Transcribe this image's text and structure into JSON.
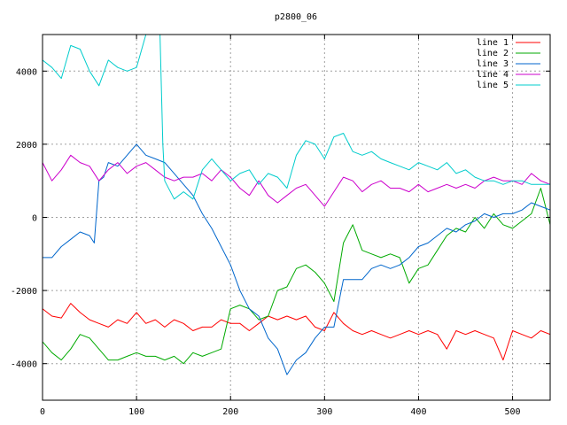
{
  "chart_data": {
    "type": "line",
    "title": "p2800_06",
    "xlabel": "",
    "ylabel": "",
    "xlim": [
      0,
      540
    ],
    "ylim": [
      -5000,
      5000
    ],
    "xticks": [
      0,
      100,
      200,
      300,
      400,
      500
    ],
    "yticks": [
      -4000,
      -2000,
      0,
      2000,
      4000
    ],
    "grid": true,
    "legend_position": "top-right",
    "series": [
      {
        "name": "line 1",
        "color": "#ff0000",
        "x": [
          0,
          10,
          20,
          30,
          40,
          50,
          60,
          70,
          80,
          90,
          100,
          110,
          120,
          130,
          140,
          150,
          160,
          170,
          180,
          190,
          200,
          210,
          220,
          230,
          240,
          250,
          260,
          270,
          280,
          290,
          300,
          310,
          320,
          330,
          340,
          350,
          360,
          370,
          380,
          390,
          400,
          410,
          420,
          430,
          440,
          450,
          460,
          470,
          480,
          490,
          500,
          510,
          520,
          530,
          540
        ],
        "y": [
          -2500,
          -2700,
          -2750,
          -2350,
          -2600,
          -2800,
          -2900,
          -3000,
          -2800,
          -2900,
          -2600,
          -2900,
          -2800,
          -3000,
          -2800,
          -2900,
          -3100,
          -3000,
          -3000,
          -2800,
          -2900,
          -2900,
          -3100,
          -2900,
          -2700,
          -2800,
          -2700,
          -2800,
          -2700,
          -3000,
          -3100,
          -2600,
          -2900,
          -3100,
          -3200,
          -3100,
          -3200,
          -3300,
          -3200,
          -3100,
          -3200,
          -3100,
          -3200,
          -3600,
          -3100,
          -3200,
          -3100,
          -3200,
          -3300,
          -3900,
          -3100,
          -3200,
          -3300,
          -3100,
          -3200
        ]
      },
      {
        "name": "line 2",
        "color": "#00aa00",
        "x": [
          0,
          10,
          20,
          30,
          40,
          50,
          60,
          70,
          80,
          90,
          100,
          110,
          120,
          130,
          140,
          150,
          160,
          170,
          180,
          190,
          200,
          210,
          220,
          230,
          240,
          250,
          260,
          270,
          280,
          290,
          300,
          310,
          320,
          330,
          340,
          350,
          360,
          370,
          380,
          390,
          400,
          410,
          420,
          430,
          440,
          450,
          460,
          470,
          480,
          490,
          500,
          510,
          520,
          530,
          540
        ],
        "y": [
          -3400,
          -3700,
          -3900,
          -3600,
          -3200,
          -3300,
          -3600,
          -3900,
          -3900,
          -3800,
          -3700,
          -3800,
          -3800,
          -3900,
          -3800,
          -4000,
          -3700,
          -3800,
          -3700,
          -3600,
          -2500,
          -2400,
          -2500,
          -2800,
          -2700,
          -2000,
          -1900,
          -1400,
          -1300,
          -1500,
          -1800,
          -2300,
          -700,
          -200,
          -900,
          -1000,
          -1100,
          -1000,
          -1100,
          -1800,
          -1400,
          -1300,
          -900,
          -500,
          -300,
          -400,
          0,
          -300,
          100,
          -200,
          -300,
          -100,
          100,
          800,
          -200
        ]
      },
      {
        "name": "line 3",
        "color": "#0066cc",
        "x": [
          0,
          10,
          20,
          30,
          40,
          50,
          55,
          60,
          65,
          70,
          80,
          90,
          100,
          110,
          120,
          130,
          140,
          150,
          160,
          170,
          180,
          190,
          200,
          210,
          220,
          230,
          240,
          250,
          260,
          270,
          280,
          290,
          300,
          310,
          320,
          330,
          340,
          350,
          360,
          370,
          380,
          390,
          400,
          410,
          420,
          430,
          440,
          450,
          460,
          470,
          480,
          490,
          500,
          510,
          520,
          530,
          540
        ],
        "y": [
          -1100,
          -1100,
          -800,
          -600,
          -400,
          -500,
          -700,
          1000,
          1100,
          1500,
          1400,
          1700,
          2000,
          1700,
          1600,
          1500,
          1200,
          900,
          600,
          100,
          -300,
          -800,
          -1300,
          -2000,
          -2500,
          -2700,
          -3300,
          -3600,
          -4300,
          -3900,
          -3700,
          -3300,
          -3000,
          -3000,
          -1700,
          -1700,
          -1700,
          -1400,
          -1300,
          -1400,
          -1300,
          -1100,
          -800,
          -700,
          -500,
          -300,
          -400,
          -200,
          -100,
          100,
          0,
          100,
          100,
          200,
          400,
          300,
          200
        ]
      },
      {
        "name": "line 4",
        "color": "#cc00cc",
        "x": [
          0,
          10,
          20,
          30,
          40,
          50,
          60,
          70,
          80,
          90,
          100,
          110,
          120,
          130,
          140,
          150,
          160,
          170,
          180,
          190,
          200,
          210,
          220,
          230,
          240,
          250,
          260,
          270,
          280,
          290,
          300,
          310,
          320,
          330,
          340,
          350,
          360,
          370,
          380,
          390,
          400,
          410,
          420,
          430,
          440,
          450,
          460,
          470,
          480,
          490,
          500,
          510,
          520,
          530,
          540
        ],
        "y": [
          1500,
          1000,
          1300,
          1700,
          1500,
          1400,
          1000,
          1300,
          1500,
          1200,
          1400,
          1500,
          1300,
          1100,
          1000,
          1100,
          1100,
          1200,
          1000,
          1300,
          1100,
          800,
          600,
          1000,
          600,
          400,
          600,
          800,
          900,
          600,
          300,
          700,
          1100,
          1000,
          700,
          900,
          1000,
          800,
          800,
          700,
          900,
          700,
          800,
          900,
          800,
          900,
          800,
          1000,
          1100,
          1000,
          1000,
          900,
          1200,
          1000,
          900
        ]
      },
      {
        "name": "line 5",
        "color": "#00cccc",
        "x": [
          0,
          10,
          20,
          30,
          40,
          50,
          60,
          70,
          80,
          90,
          100,
          110,
          120,
          125,
          128,
          130,
          140,
          150,
          160,
          170,
          180,
          190,
          200,
          210,
          220,
          230,
          240,
          250,
          260,
          270,
          280,
          290,
          300,
          310,
          320,
          330,
          340,
          350,
          360,
          370,
          380,
          390,
          400,
          410,
          420,
          430,
          440,
          450,
          460,
          470,
          480,
          490,
          500,
          510,
          520,
          530,
          540
        ],
        "y": [
          4300,
          4100,
          3800,
          4700,
          4600,
          4000,
          3600,
          4300,
          4100,
          4000,
          4100,
          5000,
          5000,
          5000,
          2000,
          1000,
          500,
          700,
          500,
          1300,
          1600,
          1300,
          1000,
          1200,
          1300,
          900,
          1200,
          1100,
          800,
          1700,
          2100,
          2000,
          1600,
          2200,
          2300,
          1800,
          1700,
          1800,
          1600,
          1500,
          1400,
          1300,
          1500,
          1400,
          1300,
          1500,
          1200,
          1300,
          1100,
          1000,
          1000,
          900,
          1000,
          1000,
          900,
          900,
          900
        ]
      }
    ]
  }
}
